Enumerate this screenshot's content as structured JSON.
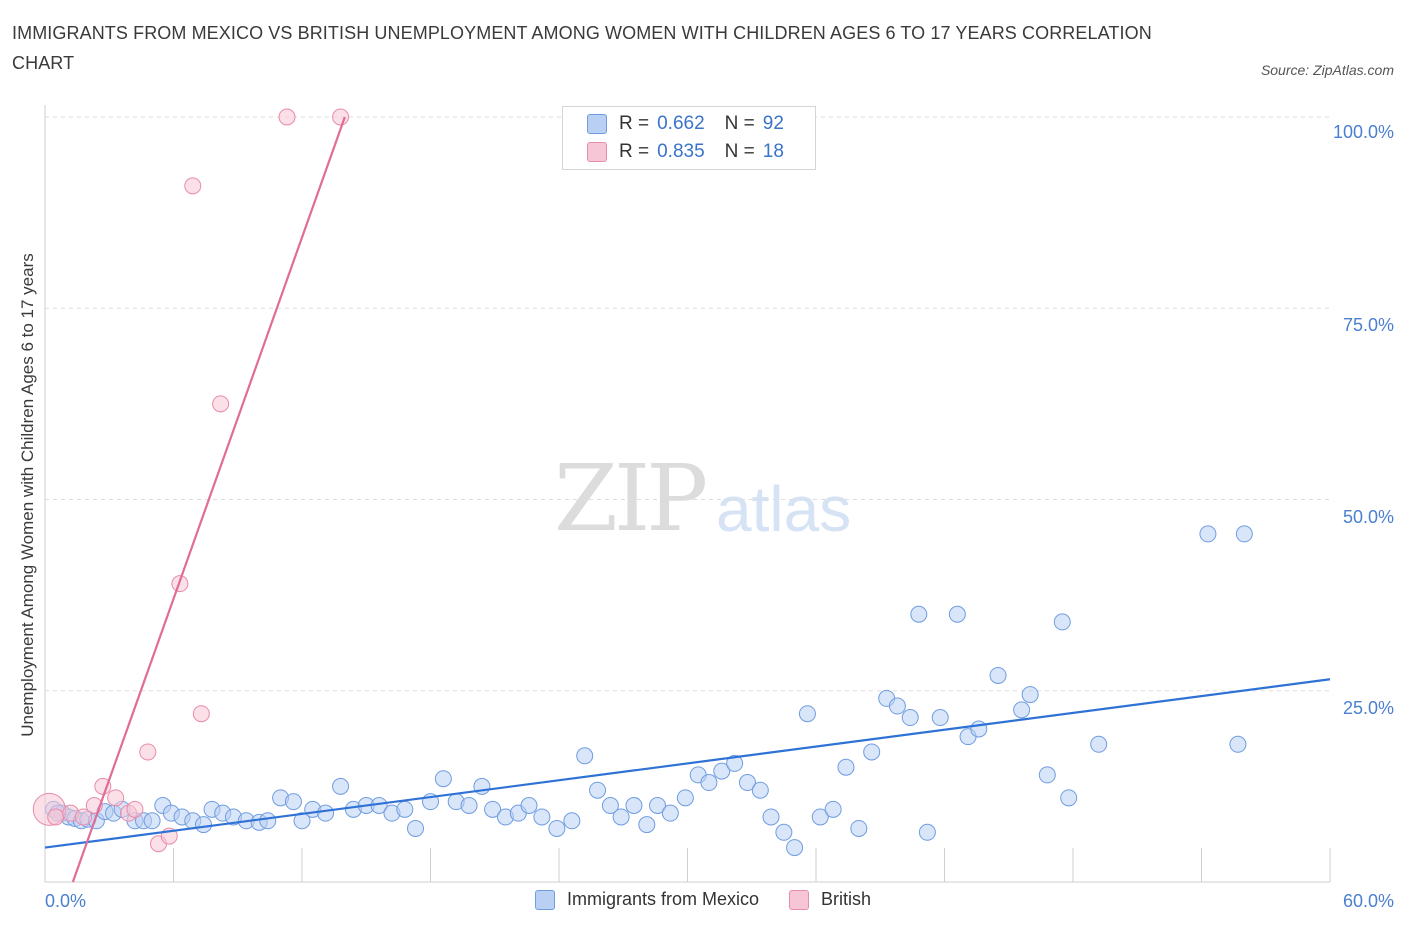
{
  "title": "IMMIGRANTS FROM MEXICO VS BRITISH UNEMPLOYMENT AMONG WOMEN WITH CHILDREN AGES 6 TO 17 YEARS CORRELATION CHART",
  "source": "Source: ZipAtlas.com",
  "watermark": {
    "zip": "ZIP",
    "atlas": "atlas"
  },
  "legend_top": {
    "rows": [
      {
        "r_label": "R =",
        "r_value": "0.662",
        "n_label": "N =",
        "n_value": "92"
      },
      {
        "r_label": "R =",
        "r_value": "0.835",
        "n_label": "N =",
        "n_value": "18"
      }
    ]
  },
  "chart_data": {
    "type": "scatter",
    "title": "IMMIGRANTS FROM MEXICO VS BRITISH UNEMPLOYMENT AMONG WOMEN WITH CHILDREN AGES 6 TO 17 YEARS CORRELATION CHART",
    "xlabel": "",
    "ylabel": "Unemployment Among Women with Children Ages 6 to 17 years",
    "xlim": [
      0,
      60
    ],
    "ylim": [
      0,
      100
    ],
    "x_tick_labels": [
      "0.0%",
      "60.0%"
    ],
    "y_tick_labels": [
      "100.0%",
      "75.0%",
      "50.0%",
      "25.0%"
    ],
    "y_tick_values": [
      100,
      75,
      50,
      25
    ],
    "grid": "horizontal dashed",
    "legend_position": "bottom",
    "series": [
      {
        "name": "Immigrants from Mexico",
        "color": "#6f9de0",
        "fill": "#b9cff3",
        "r": "0.662",
        "n": "92",
        "trend": {
          "x": [
            0,
            60
          ],
          "y": [
            4.5,
            26.5
          ]
        },
        "points": [
          [
            0.4,
            9.5
          ],
          [
            0.8,
            9
          ],
          [
            1.1,
            8.5
          ],
          [
            1.4,
            8.3
          ],
          [
            1.7,
            8
          ],
          [
            2.0,
            8.2
          ],
          [
            2.4,
            8
          ],
          [
            2.8,
            9.2
          ],
          [
            3.2,
            9
          ],
          [
            3.6,
            9.5
          ],
          [
            4.2,
            8
          ],
          [
            4.6,
            8
          ],
          [
            5.0,
            8
          ],
          [
            5.5,
            10
          ],
          [
            5.9,
            9
          ],
          [
            6.4,
            8.5
          ],
          [
            6.9,
            8
          ],
          [
            7.4,
            7.5
          ],
          [
            7.8,
            9.5
          ],
          [
            8.3,
            9
          ],
          [
            8.8,
            8.5
          ],
          [
            9.4,
            8
          ],
          [
            10.0,
            7.8
          ],
          [
            10.4,
            8
          ],
          [
            11.0,
            11
          ],
          [
            11.6,
            10.5
          ],
          [
            12.0,
            8
          ],
          [
            12.5,
            9.5
          ],
          [
            13.1,
            9
          ],
          [
            13.8,
            12.5
          ],
          [
            14.4,
            9.5
          ],
          [
            15.0,
            10
          ],
          [
            15.6,
            10
          ],
          [
            16.2,
            9
          ],
          [
            16.8,
            9.5
          ],
          [
            17.3,
            7
          ],
          [
            18.0,
            10.5
          ],
          [
            18.6,
            13.5
          ],
          [
            19.2,
            10.5
          ],
          [
            19.8,
            10
          ],
          [
            20.4,
            12.5
          ],
          [
            20.9,
            9.5
          ],
          [
            21.5,
            8.5
          ],
          [
            22.1,
            9
          ],
          [
            22.6,
            10
          ],
          [
            23.2,
            8.5
          ],
          [
            23.9,
            7
          ],
          [
            24.6,
            8
          ],
          [
            25.2,
            16.5
          ],
          [
            25.8,
            12
          ],
          [
            26.4,
            10
          ],
          [
            26.9,
            8.5
          ],
          [
            27.5,
            10
          ],
          [
            28.1,
            7.5
          ],
          [
            28.6,
            10
          ],
          [
            29.2,
            9
          ],
          [
            29.9,
            11
          ],
          [
            30.5,
            14
          ],
          [
            31.0,
            13
          ],
          [
            31.6,
            14.5
          ],
          [
            32.2,
            15.5
          ],
          [
            32.8,
            13
          ],
          [
            33.4,
            12
          ],
          [
            33.9,
            8.5
          ],
          [
            34.5,
            6.5
          ],
          [
            35.0,
            4.5
          ],
          [
            35.6,
            22
          ],
          [
            36.2,
            8.5
          ],
          [
            36.8,
            9.5
          ],
          [
            37.4,
            15
          ],
          [
            38.0,
            7
          ],
          [
            38.6,
            17
          ],
          [
            39.3,
            24
          ],
          [
            39.8,
            23
          ],
          [
            40.4,
            21.5
          ],
          [
            40.8,
            35
          ],
          [
            41.2,
            6.5
          ],
          [
            41.8,
            21.5
          ],
          [
            42.6,
            35
          ],
          [
            43.1,
            19
          ],
          [
            43.6,
            20
          ],
          [
            44.5,
            27
          ],
          [
            45.6,
            22.5
          ],
          [
            46.0,
            24.5
          ],
          [
            46.8,
            14
          ],
          [
            47.5,
            34
          ],
          [
            47.8,
            11
          ],
          [
            49.2,
            18
          ],
          [
            54.3,
            45.5
          ],
          [
            56.0,
            45.5
          ],
          [
            55.7,
            18
          ],
          [
            0.6,
            9
          ]
        ]
      },
      {
        "name": "British",
        "color": "#e98bab",
        "fill": "#f7c6d6",
        "r": "0.835",
        "n": "18",
        "trend": {
          "x": [
            1.3,
            14.0
          ],
          "y": [
            0,
            100
          ]
        },
        "points": [
          [
            0.2,
            9.5
          ],
          [
            0.5,
            8.5
          ],
          [
            1.2,
            9
          ],
          [
            1.8,
            8.5
          ],
          [
            2.3,
            10
          ],
          [
            2.7,
            12.5
          ],
          [
            3.3,
            11
          ],
          [
            3.9,
            9
          ],
          [
            4.2,
            9.5
          ],
          [
            4.8,
            17
          ],
          [
            5.3,
            5
          ],
          [
            5.8,
            6
          ],
          [
            6.3,
            39
          ],
          [
            6.9,
            91
          ],
          [
            7.3,
            22
          ],
          [
            8.2,
            62.5
          ],
          [
            11.3,
            100
          ],
          [
            13.8,
            100
          ]
        ]
      }
    ]
  }
}
